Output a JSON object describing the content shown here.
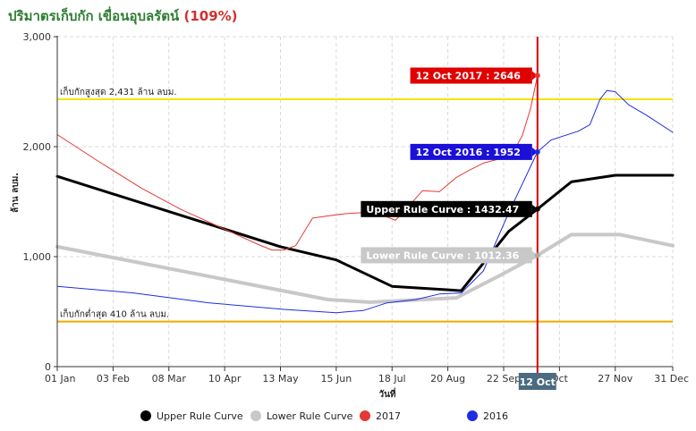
{
  "title": {
    "main": "ปริมาตรเก็บกัก เขื่อนอุบลรัตน์",
    "percent": "(109%)"
  },
  "chart_data": {
    "type": "line",
    "xlabel": "วันที่",
    "ylabel": "ล้าน ลบม.",
    "ylim": [
      0,
      3000
    ],
    "xlim": [
      "2017-01-01",
      "2017-12-31"
    ],
    "y_ticks": [
      "0",
      "1,000",
      "2,000",
      "3,000"
    ],
    "x_ticks": [
      {
        "date": "2017-01-01",
        "label": "01 Jan"
      },
      {
        "date": "2017-02-03",
        "label": "03 Feb"
      },
      {
        "date": "2017-03-08",
        "label": "08 Mar"
      },
      {
        "date": "2017-04-10",
        "label": "10 Apr"
      },
      {
        "date": "2017-05-13",
        "label": "13 May"
      },
      {
        "date": "2017-06-15",
        "label": "15 Jun"
      },
      {
        "date": "2017-07-18",
        "label": "18 Jul"
      },
      {
        "date": "2017-08-20",
        "label": "20 Aug"
      },
      {
        "date": "2017-09-22",
        "label": "22 Sep"
      },
      {
        "date": "2017-10-25",
        "label": "Oct"
      },
      {
        "date": "2017-11-27",
        "label": "27 Nov"
      },
      {
        "date": "2017-12-31",
        "label": "31 Dec"
      }
    ],
    "grid": true,
    "legend_position": "bottom",
    "reference_lines": [
      {
        "label": "เก็บกักสูงสุด 2,431 ล้าน ลบม.",
        "value": 2431,
        "color": "#f2e600"
      },
      {
        "label": "เก็บกักต่ำสุด 410 ล้าน ลบม.",
        "value": 410,
        "color": "#f2a900"
      }
    ],
    "current_date": {
      "date": "2017-10-12",
      "label": "12 Oct",
      "color": "#d50000"
    },
    "series": [
      {
        "name": "Upper Rule Curve",
        "color": "#000000",
        "width": 3,
        "x": [
          "2017-01-01",
          "2017-05-13",
          "2017-06-15",
          "2017-07-18",
          "2017-08-28",
          "2017-09-25",
          "2017-10-12",
          "2017-11-01",
          "2017-11-27",
          "2017-12-31"
        ],
        "y": [
          1730,
          1090,
          970,
          730,
          690,
          1230,
          1432.47,
          1680,
          1740,
          1740
        ]
      },
      {
        "name": "Lower Rule Curve",
        "color": "#c8c8c8",
        "width": 4,
        "x": [
          "2017-01-01",
          "2017-06-10",
          "2017-07-05",
          "2017-08-25",
          "2017-09-20",
          "2017-10-12",
          "2017-11-01",
          "2017-11-30",
          "2017-12-31"
        ],
        "y": [
          1090,
          610,
          585,
          625,
          830,
          1012.36,
          1200,
          1200,
          1100
        ]
      },
      {
        "name": "2017",
        "color": "#e53935",
        "width": 1,
        "x": [
          "2017-01-01",
          "2017-01-25",
          "2017-02-20",
          "2017-03-15",
          "2017-04-10",
          "2017-04-30",
          "2017-05-08",
          "2017-05-15",
          "2017-05-22",
          "2017-06-01",
          "2017-06-10",
          "2017-06-20",
          "2017-07-01",
          "2017-07-05",
          "2017-07-12",
          "2017-07-20",
          "2017-07-28",
          "2017-08-05",
          "2017-08-15",
          "2017-08-25",
          "2017-09-01",
          "2017-09-10",
          "2017-09-20",
          "2017-09-28",
          "2017-10-03",
          "2017-10-08",
          "2017-10-12"
        ],
        "y": [
          2110,
          1870,
          1620,
          1430,
          1250,
          1110,
          1060,
          1060,
          1100,
          1350,
          1370,
          1390,
          1400,
          1420,
          1380,
          1330,
          1460,
          1600,
          1590,
          1720,
          1780,
          1850,
          1890,
          1960,
          2100,
          2350,
          2646
        ]
      },
      {
        "name": "2016",
        "color": "#1e2de0",
        "width": 1,
        "x": [
          "2017-01-01",
          "2017-02-15",
          "2017-04-01",
          "2017-05-15",
          "2017-06-15",
          "2017-07-01",
          "2017-07-15",
          "2017-08-01",
          "2017-08-15",
          "2017-08-28",
          "2017-09-10",
          "2017-09-25",
          "2017-10-12",
          "2017-10-20",
          "2017-10-28",
          "2017-11-05",
          "2017-11-12",
          "2017-11-18",
          "2017-11-22",
          "2017-11-27",
          "2017-12-05",
          "2017-12-15",
          "2017-12-31"
        ],
        "y": [
          730,
          670,
          580,
          520,
          490,
          510,
          580,
          610,
          660,
          670,
          870,
          1400,
          1952,
          2060,
          2100,
          2140,
          2200,
          2430,
          2510,
          2500,
          2380,
          2290,
          2130
        ]
      }
    ],
    "tooltips": [
      {
        "series": "2017",
        "text": "12 Oct 2017 : 2646",
        "color": "#e00000"
      },
      {
        "series": "2016",
        "text": "12 Oct 2016 : 1952",
        "color": "#1a10d8"
      },
      {
        "series": "Upper Rule Curve",
        "text": "Upper Rule Curve : 1432.47",
        "color": "#000000"
      },
      {
        "series": "Lower Rule Curve",
        "text": "Lower Rule Curve : 1012.36",
        "color": "#c8c8c8"
      }
    ]
  }
}
